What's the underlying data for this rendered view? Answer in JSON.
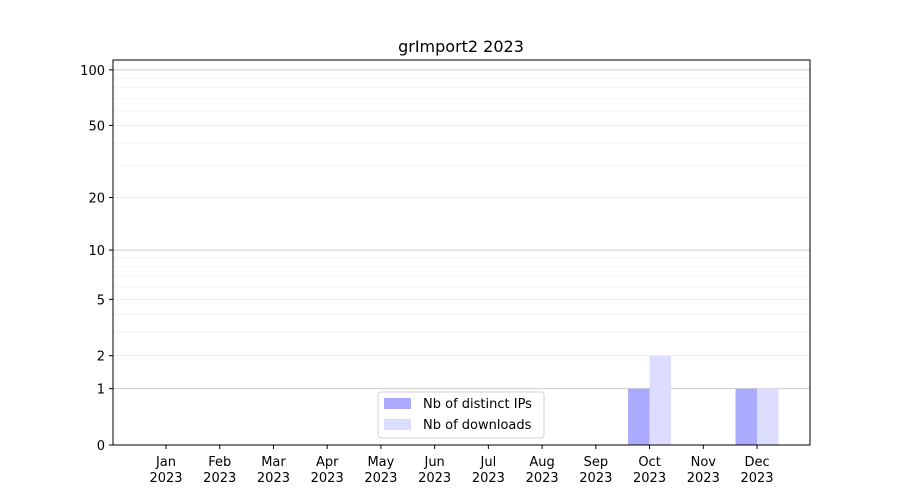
{
  "chart_data": {
    "type": "bar",
    "title": "grImport2 2023",
    "xlabel": "",
    "ylabel": "",
    "yscale": "log(1+y)",
    "ylim": [
      0,
      113
    ],
    "yticks": [
      0,
      1,
      2,
      5,
      10,
      20,
      50,
      100
    ],
    "ytick_labels": [
      "0",
      "1",
      "2",
      "5",
      "10",
      "20",
      "50",
      "100"
    ],
    "grid": true,
    "categories": [
      "Jan\n2023",
      "Feb\n2023",
      "Mar\n2023",
      "Apr\n2023",
      "May\n2023",
      "Jun\n2023",
      "Jul\n2023",
      "Aug\n2023",
      "Sep\n2023",
      "Oct\n2023",
      "Nov\n2023",
      "Dec\n2023"
    ],
    "category_lines": [
      [
        "Jan",
        "2023"
      ],
      [
        "Feb",
        "2023"
      ],
      [
        "Mar",
        "2023"
      ],
      [
        "Apr",
        "2023"
      ],
      [
        "May",
        "2023"
      ],
      [
        "Jun",
        "2023"
      ],
      [
        "Jul",
        "2023"
      ],
      [
        "Aug",
        "2023"
      ],
      [
        "Sep",
        "2023"
      ],
      [
        "Oct",
        "2023"
      ],
      [
        "Nov",
        "2023"
      ],
      [
        "Dec",
        "2023"
      ]
    ],
    "series": [
      {
        "name": "Nb of distinct IPs",
        "color": "#aaaaff",
        "values": [
          0,
          0,
          0,
          0,
          0,
          0,
          0,
          0,
          0,
          1,
          0,
          1
        ]
      },
      {
        "name": "Nb of downloads",
        "color": "#ddddff",
        "values": [
          0,
          0,
          0,
          0,
          0,
          0,
          0,
          0,
          0,
          2,
          0,
          1
        ]
      }
    ],
    "legend_position": "bottom-center"
  }
}
